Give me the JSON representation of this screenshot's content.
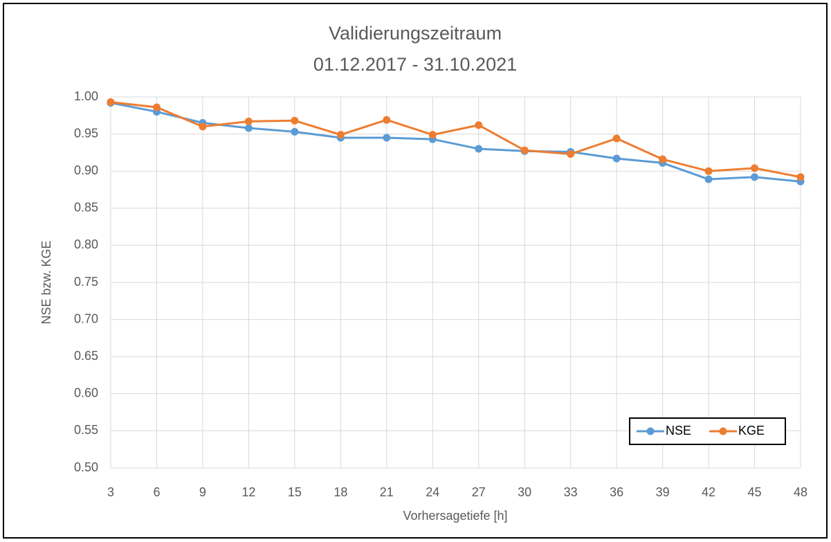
{
  "chart_data": {
    "type": "line",
    "title": "Validierungszeitraum",
    "subtitle": "01.12.2017 - 31.10.2021",
    "x_label": "Vorhersagetiefe [h]",
    "y_label": "NSE bzw. KGE",
    "x": [
      3,
      6,
      9,
      12,
      15,
      18,
      21,
      24,
      27,
      30,
      33,
      36,
      39,
      42,
      45,
      48
    ],
    "series": [
      {
        "name": "NSE",
        "color": "#5b9bd5",
        "values": [
          0.992,
          0.98,
          0.965,
          0.958,
          0.953,
          0.945,
          0.945,
          0.943,
          0.93,
          0.927,
          0.926,
          0.917,
          0.911,
          0.889,
          0.892,
          0.886
        ]
      },
      {
        "name": "KGE",
        "color": "#ed7d31",
        "values": [
          0.993,
          0.986,
          0.96,
          0.967,
          0.968,
          0.949,
          0.969,
          0.949,
          0.962,
          0.928,
          0.923,
          0.944,
          0.916,
          0.9,
          0.904,
          0.892
        ]
      }
    ],
    "xlim": [
      3,
      48
    ],
    "xticks": [
      3,
      6,
      9,
      12,
      15,
      18,
      21,
      24,
      27,
      30,
      33,
      36,
      39,
      42,
      45,
      48
    ],
    "ylim": [
      0.5,
      1
    ],
    "yticks": [
      {
        "value": 0.5,
        "label": "0.50"
      },
      0.55,
      {
        "value": 0.6,
        "label": "0.60"
      },
      0.65,
      {
        "value": 0.7,
        "label": "0.70"
      },
      0.75,
      {
        "value": 0.8,
        "label": "0.80"
      },
      0.85,
      {
        "value": 0.9,
        "label": "0.90"
      },
      0.95,
      {
        "value": 1,
        "label": "1.00"
      }
    ],
    "grid": true,
    "legend": "lower right"
  }
}
